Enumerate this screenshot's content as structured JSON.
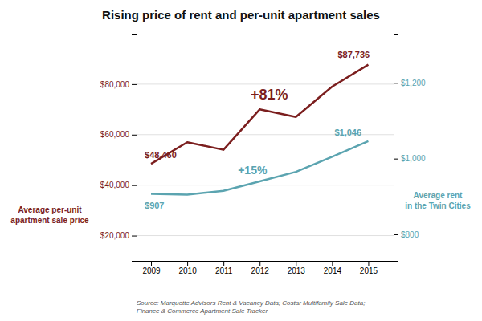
{
  "chart_data": {
    "type": "line",
    "title": "Rising price of rent and per-unit apartment sales",
    "x": [
      2009,
      2010,
      2011,
      2012,
      2013,
      2014,
      2015
    ],
    "xlim": [
      2008.6,
      2015.7
    ],
    "xticks": [
      2009,
      2010,
      2011,
      2012,
      2013,
      2014,
      2015
    ],
    "series": [
      {
        "color": "#7B1E1E",
        "values": [
          48460,
          57000,
          54000,
          70000,
          67000,
          79000,
          87736
        ]
      },
      {
        "color": "#5BA4B0",
        "values": [
          907,
          905,
          915,
          940,
          965,
          1005,
          1046
        ],
        "axis": "y2"
      }
    ],
    "ylabel": "Average per-unit\napartment sale price",
    "y2label": "Average rent\nin the Twin Cities",
    "ylim": [
      10000,
      100000
    ],
    "yticks": [
      {
        "value": 20000,
        "label": "$20,000"
      },
      {
        "value": 40000,
        "label": "$40,000"
      },
      {
        "value": 60000,
        "label": "$60,000"
      },
      {
        "value": 80000,
        "label": "$80,000"
      }
    ],
    "y2lim": [
      730,
      1330
    ],
    "y2ticks": [
      {
        "value": 800,
        "label": "$800"
      },
      {
        "value": 1000,
        "label": "$1,000"
      },
      {
        "value": 1200,
        "label": "$1,200"
      }
    ],
    "grid": true,
    "annotations": [
      {
        "text": "$48,460",
        "x": 2009,
        "y": 48460
      },
      {
        "text": "$87,736",
        "x": 2015,
        "y": 87736
      },
      {
        "text": "$907",
        "x": 2009,
        "y": 907,
        "axis": "y2"
      },
      {
        "text": "$1,046",
        "x": 2015,
        "y": 1046,
        "axis": "y2"
      },
      {
        "text": "+81%",
        "x": 2011.75,
        "y": 74000
      },
      {
        "text": "+15%",
        "x": 2011.4,
        "y": 958,
        "axis": "y2"
      }
    ],
    "source": "Source: Marquette Advisors Rent & Vacancy Data; Costar Multifamily Sale Data;\nFinance & Commerce Apartment Sale Tracker"
  }
}
